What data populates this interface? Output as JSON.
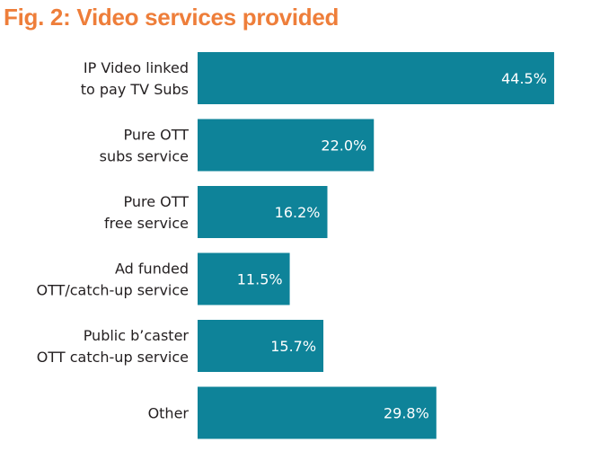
{
  "title": "Fig. 2: Video services provided",
  "colors": {
    "title": "#ee7e3a",
    "bar": "#0e8399",
    "label": "#231f20",
    "value_label": "#ffffff"
  },
  "chart_data": {
    "type": "bar",
    "orientation": "horizontal",
    "title": "Fig. 2: Video services provided",
    "categories": [
      [
        "IP Video linked",
        "to pay TV Subs"
      ],
      [
        "Pure OTT",
        "subs service"
      ],
      [
        "Pure OTT",
        "free service"
      ],
      [
        "Ad funded",
        "OTT/catch-up service"
      ],
      [
        "Public b’caster",
        "OTT catch-up service"
      ],
      [
        "Other"
      ]
    ],
    "values": [
      44.5,
      22.0,
      16.2,
      11.5,
      15.7,
      29.8
    ],
    "value_labels": [
      "44.5%",
      "22.0%",
      "16.2%",
      "11.5%",
      "15.7%",
      "29.8%"
    ],
    "xlim": [
      0,
      50
    ],
    "grid": false,
    "legend": "none"
  }
}
